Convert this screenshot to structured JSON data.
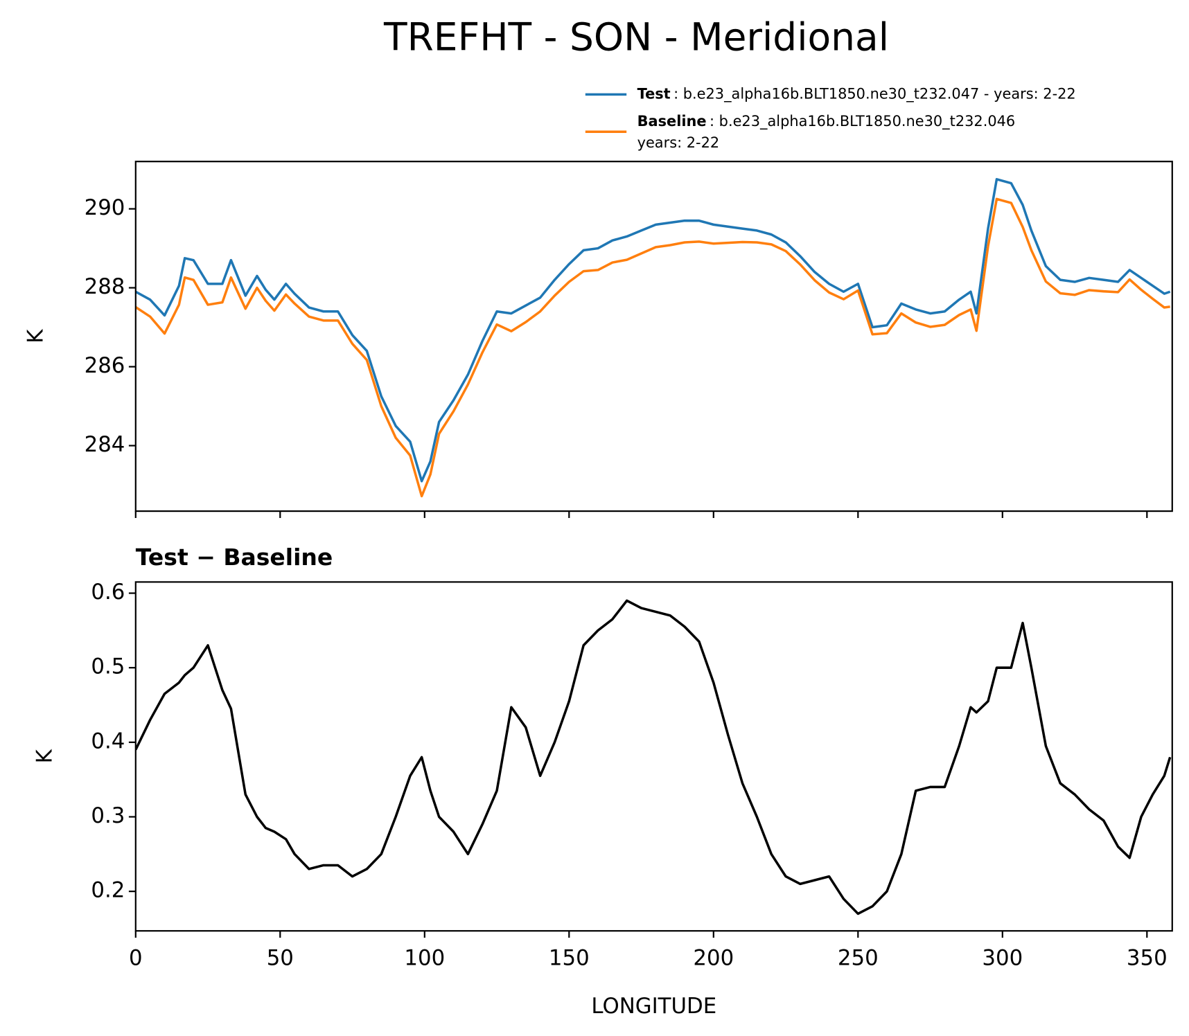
{
  "chart_data": [
    {
      "type": "line",
      "title": "TREFHT - SON - Meridional",
      "ylabel": "K",
      "x": [
        0,
        5,
        10,
        15,
        17,
        20,
        25,
        30,
        33,
        38,
        42,
        45,
        48,
        52,
        55,
        60,
        65,
        70,
        75,
        80,
        85,
        90,
        95,
        99,
        102,
        105,
        110,
        115,
        120,
        125,
        130,
        135,
        140,
        145,
        150,
        155,
        160,
        165,
        170,
        175,
        180,
        185,
        190,
        195,
        200,
        205,
        210,
        215,
        220,
        225,
        230,
        235,
        240,
        245,
        250,
        255,
        260,
        265,
        270,
        275,
        280,
        285,
        289,
        291,
        295,
        298,
        303,
        307,
        310,
        315,
        320,
        325,
        330,
        335,
        340,
        344,
        348,
        352,
        356,
        358
      ],
      "series": [
        {
          "name": "Test",
          "description": [
            ": b.e23_alpha16b.BLT1850.ne30_t232.047 - years: 2-22"
          ],
          "color": "#1f77b4",
          "values": [
            287.9,
            287.7,
            287.3,
            288.05,
            288.75,
            288.7,
            288.1,
            288.1,
            288.7,
            287.8,
            288.3,
            287.95,
            287.7,
            288.1,
            287.85,
            287.5,
            287.4,
            287.4,
            286.8,
            286.4,
            285.25,
            284.5,
            284.1,
            283.1,
            283.6,
            284.6,
            285.15,
            285.8,
            286.65,
            287.4,
            287.35,
            287.55,
            287.75,
            288.2,
            288.6,
            288.95,
            289.0,
            289.2,
            289.3,
            289.45,
            289.6,
            289.65,
            289.7,
            289.7,
            289.6,
            289.55,
            289.5,
            289.45,
            289.35,
            289.15,
            288.8,
            288.4,
            288.1,
            287.9,
            288.1,
            287.0,
            287.05,
            287.6,
            287.45,
            287.35,
            287.4,
            287.7,
            287.9,
            287.35,
            289.5,
            290.75,
            290.65,
            290.1,
            289.45,
            288.55,
            288.2,
            288.15,
            288.25,
            288.2,
            288.15,
            288.45,
            288.25,
            288.05,
            287.85,
            287.9
          ]
        },
        {
          "name": "Baseline",
          "description": [
            ": b.e23_alpha16b.BLT1850.ne30_t232.046",
            "years: 2-22"
          ],
          "color": "#ff7f0e",
          "values": [
            287.51,
            287.27,
            286.84,
            287.57,
            288.26,
            288.2,
            287.57,
            287.63,
            288.26,
            287.47,
            288.0,
            287.67,
            287.42,
            287.83,
            287.6,
            287.27,
            287.17,
            287.17,
            286.58,
            286.17,
            285.0,
            284.2,
            283.75,
            282.72,
            283.27,
            284.3,
            284.87,
            285.55,
            286.36,
            287.07,
            286.9,
            287.13,
            287.4,
            287.8,
            288.15,
            288.42,
            288.45,
            288.64,
            288.71,
            288.87,
            289.03,
            289.08,
            289.15,
            289.17,
            289.12,
            289.14,
            289.16,
            289.15,
            289.1,
            288.93,
            288.59,
            288.19,
            287.88,
            287.71,
            287.93,
            286.82,
            286.85,
            287.35,
            287.12,
            287.01,
            287.06,
            287.31,
            287.45,
            286.91,
            289.05,
            290.25,
            290.15,
            289.54,
            288.95,
            288.16,
            287.86,
            287.82,
            287.94,
            287.91,
            287.89,
            288.21,
            287.95,
            287.72,
            287.5,
            287.52
          ]
        }
      ],
      "xlim": [
        0,
        358.75
      ],
      "ylim": [
        282.34,
        291.2
      ],
      "yticks": [
        284,
        286,
        288,
        290
      ],
      "legend": "upper right"
    },
    {
      "type": "line",
      "title": "Test − Baseline",
      "ylabel": "K",
      "xlabel": "LONGITUDE",
      "x": [
        0,
        5,
        10,
        15,
        17,
        20,
        25,
        30,
        33,
        38,
        42,
        45,
        48,
        52,
        55,
        60,
        65,
        70,
        75,
        80,
        85,
        90,
        95,
        99,
        102,
        105,
        110,
        115,
        120,
        125,
        130,
        135,
        140,
        145,
        150,
        155,
        160,
        165,
        170,
        175,
        180,
        185,
        190,
        195,
        200,
        205,
        210,
        215,
        220,
        225,
        230,
        235,
        240,
        245,
        250,
        255,
        260,
        265,
        270,
        275,
        280,
        285,
        289,
        291,
        295,
        298,
        303,
        307,
        310,
        315,
        320,
        325,
        330,
        335,
        340,
        344,
        348,
        352,
        356,
        358
      ],
      "series": [
        {
          "color": "#000000",
          "values": [
            0.39,
            0.43,
            0.465,
            0.48,
            0.49,
            0.5,
            0.53,
            0.47,
            0.445,
            0.33,
            0.3,
            0.285,
            0.28,
            0.27,
            0.25,
            0.23,
            0.235,
            0.235,
            0.22,
            0.23,
            0.25,
            0.3,
            0.355,
            0.38,
            0.335,
            0.3,
            0.28,
            0.25,
            0.29,
            0.335,
            0.447,
            0.42,
            0.355,
            0.4,
            0.455,
            0.53,
            0.55,
            0.565,
            0.59,
            0.58,
            0.575,
            0.57,
            0.555,
            0.535,
            0.48,
            0.41,
            0.345,
            0.3,
            0.25,
            0.22,
            0.21,
            0.215,
            0.22,
            0.19,
            0.17,
            0.18,
            0.2,
            0.25,
            0.335,
            0.34,
            0.34,
            0.395,
            0.447,
            0.44,
            0.455,
            0.5,
            0.5,
            0.56,
            0.5,
            0.395,
            0.345,
            0.33,
            0.31,
            0.295,
            0.26,
            0.245,
            0.3,
            0.33,
            0.355,
            0.38
          ]
        }
      ],
      "xlim": [
        0,
        358.75
      ],
      "ylim": [
        0.147,
        0.615
      ],
      "xticks": [
        0,
        50,
        100,
        150,
        200,
        250,
        300,
        350
      ],
      "yticks": [
        0.2,
        0.3,
        0.4,
        0.5,
        0.6
      ]
    }
  ]
}
